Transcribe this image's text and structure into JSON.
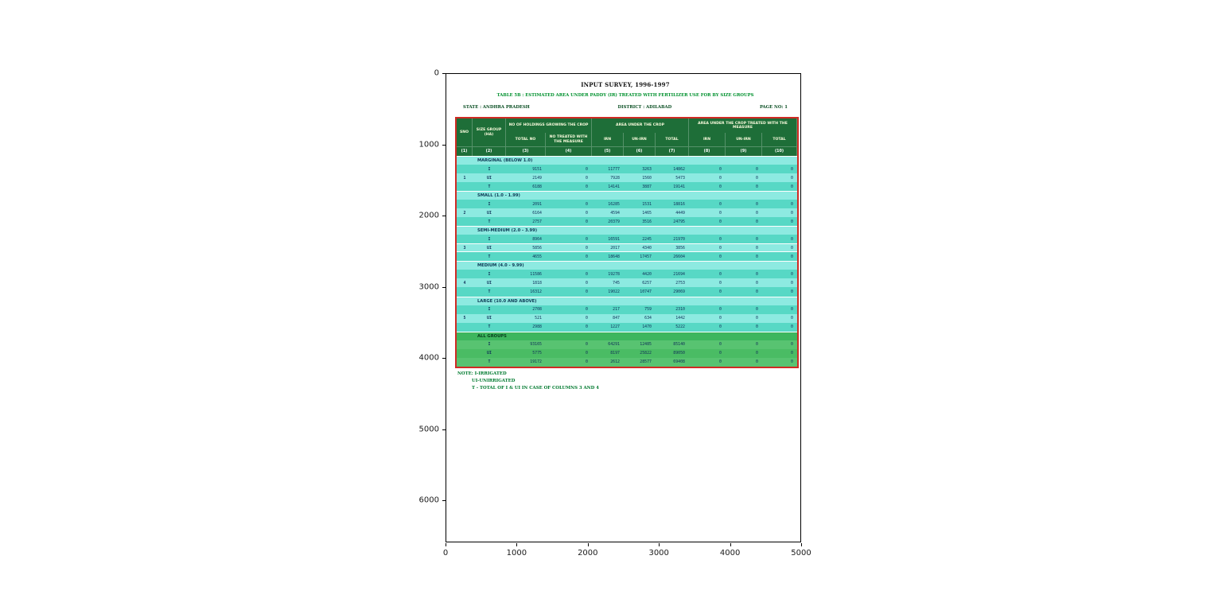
{
  "figure": {
    "x_ticks": [
      "0",
      "1000",
      "2000",
      "3000",
      "4000",
      "5000"
    ],
    "y_ticks": [
      "0",
      "1000",
      "2000",
      "3000",
      "4000",
      "5000",
      "6000"
    ]
  },
  "document": {
    "title": "INPUT SURVEY, 1996-1997",
    "subtitle": "TABLE 5B : ESTIMATED AREA UNDER PADDY (IR) TREATED WITH FERTILIZER USE FOR BY SIZE GROUPS",
    "state": "STATE : ANDHRA PRADESH",
    "district": "DISTRICT : ADILABAD",
    "page": "PAGE NO: 1",
    "notes": [
      "NOTE: I-IRRIGATED",
      "UI-UNIRRIGATED",
      "T - TOTAL OF I & UI IN CASE OF COLUMNS 3 AND 4"
    ]
  },
  "colors": {
    "header_green": "#1e6e38",
    "row_teal": "#57d8c5",
    "row_teal_light": "#8deae1",
    "all_groups_green": "#4abc64",
    "table_border_red": "#cf2b24",
    "note_green": "#007a2f",
    "subtitle_green": "#00912e"
  },
  "table": {
    "header": {
      "sno": "SNO",
      "size_group": "SIZE GROUP (HA)",
      "holdings_group": "NO OF HOLDINGS GROWING THE CROP",
      "holdings_total": "TOTAL NO",
      "holdings_treated": "NO TREATED WITH THE MEASURE",
      "area_group": "AREA UNDER THE CROP",
      "treated_group": "AREA UNDER THE CROP TREATED WITH THE MEASURE",
      "irn": "IRN",
      "unirn": "UN-IRN",
      "total": "TOTAL"
    },
    "column_numbers": [
      "(1)",
      "(2)",
      "(3)",
      "(4)",
      "(5)",
      "(6)",
      "(7)",
      "(8)",
      "(9)",
      "(10)"
    ],
    "groups": [
      {
        "sno": "1",
        "label": "MARGINAL (BELOW 1.0)",
        "all": false,
        "rows": [
          {
            "type": "I",
            "values": [
              "9151",
              "0",
              "11777",
              "3263",
              "14862",
              "0",
              "0",
              "0"
            ]
          },
          {
            "type": "UI",
            "values": [
              "2149",
              "0",
              "7928",
              "1560",
              "5473",
              "0",
              "0",
              "0"
            ]
          },
          {
            "type": "T",
            "values": [
              "6188",
              "0",
              "14141",
              "3887",
              "19141",
              "0",
              "0",
              "0"
            ]
          }
        ]
      },
      {
        "sno": "2",
        "label": "SMALL (1.0 - 1.99)",
        "all": false,
        "rows": [
          {
            "type": "I",
            "values": [
              "2091",
              "0",
              "16285",
              "1531",
              "18816",
              "0",
              "0",
              "0"
            ]
          },
          {
            "type": "UI",
            "values": [
              "6164",
              "0",
              "4594",
              "1465",
              "4449",
              "0",
              "0",
              "0"
            ]
          },
          {
            "type": "T",
            "values": [
              "2757",
              "0",
              "20379",
              "3516",
              "24795",
              "0",
              "0",
              "0"
            ]
          }
        ]
      },
      {
        "sno": "3",
        "label": "SEMI-MEDIUM (2.0 - 3.99)",
        "all": false,
        "rows": [
          {
            "type": "I",
            "values": [
              "8964",
              "0",
              "16591",
              "2245",
              "21970",
              "0",
              "0",
              "0"
            ]
          },
          {
            "type": "UI",
            "values": [
              "5856",
              "0",
              "2017",
              "4340",
              "3856",
              "0",
              "0",
              "0"
            ]
          },
          {
            "type": "T",
            "values": [
              "4655",
              "0",
              "18648",
              "17457",
              "26604",
              "0",
              "0",
              "0"
            ]
          }
        ]
      },
      {
        "sno": "4",
        "label": "MEDIUM (4.0 - 9.99)",
        "all": false,
        "rows": [
          {
            "type": "I",
            "values": [
              "11586",
              "0",
              "19278",
              "4420",
              "21694",
              "0",
              "0",
              "0"
            ]
          },
          {
            "type": "UI",
            "values": [
              "1818",
              "0",
              "745",
              "6257",
              "2753",
              "0",
              "0",
              "0"
            ]
          },
          {
            "type": "T",
            "values": [
              "16312",
              "0",
              "19022",
              "10747",
              "29069",
              "0",
              "0",
              "0"
            ]
          }
        ]
      },
      {
        "sno": "5",
        "label": "LARGE (10.0 AND ABOVE)",
        "all": false,
        "rows": [
          {
            "type": "I",
            "values": [
              "2708",
              "0",
              "217",
              "759",
              "2310",
              "0",
              "0",
              "0"
            ]
          },
          {
            "type": "UI",
            "values": [
              "521",
              "0",
              "847",
              "634",
              "1442",
              "0",
              "0",
              "0"
            ]
          },
          {
            "type": "T",
            "values": [
              "2988",
              "0",
              "1227",
              "1470",
              "5222",
              "0",
              "0",
              "0"
            ]
          }
        ]
      },
      {
        "sno": "",
        "label": "ALL GROUPS",
        "all": true,
        "rows": [
          {
            "type": "I",
            "values": [
              "93165",
              "0",
              "64291",
              "12485",
              "85140",
              "0",
              "0",
              "0"
            ]
          },
          {
            "type": "UI",
            "values": [
              "5775",
              "0",
              "8197",
              "25822",
              "89050",
              "0",
              "0",
              "0"
            ]
          },
          {
            "type": "T",
            "values": [
              "19172",
              "0",
              "2612",
              "28577",
              "69408",
              "0",
              "0",
              "0"
            ]
          }
        ]
      }
    ]
  }
}
